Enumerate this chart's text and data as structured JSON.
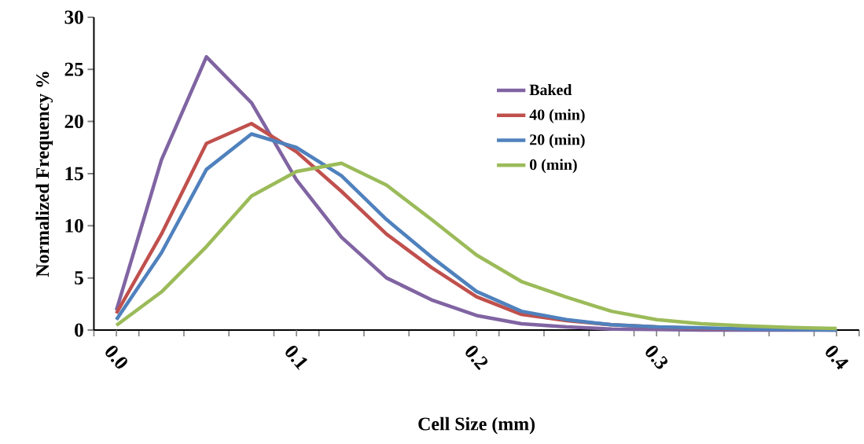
{
  "chart_data": {
    "type": "line",
    "xlabel": "Cell Size (mm)",
    "ylabel": "Normalized Frequency %",
    "x": [
      0,
      0.025,
      0.05,
      0.075,
      0.1,
      0.125,
      0.15,
      0.175,
      0.2,
      0.225,
      0.25,
      0.275,
      0.3,
      0.325,
      0.35,
      0.375,
      0.4
    ],
    "series": [
      {
        "name": "Baked",
        "color": "#8064a2",
        "values": [
          1.9,
          16.3,
          26.2,
          21.8,
          14.4,
          8.9,
          5.0,
          2.9,
          1.4,
          0.6,
          0.3,
          0.1,
          0.05,
          0,
          0,
          0,
          0
        ]
      },
      {
        "name": "40 (min)",
        "color": "#c0504d",
        "values": [
          1.6,
          9.2,
          17.9,
          19.8,
          17.1,
          13.3,
          9.2,
          6.0,
          3.2,
          1.5,
          0.9,
          0.5,
          0.3,
          0.15,
          0.1,
          null,
          null
        ]
      },
      {
        "name": "20 (min)",
        "color": "#4f81bd",
        "values": [
          1.0,
          7.4,
          15.4,
          18.8,
          17.5,
          14.8,
          10.6,
          7.0,
          3.7,
          1.8,
          1.0,
          0.5,
          0.3,
          0.2,
          0.1,
          0.05,
          0
        ]
      },
      {
        "name": "0 (min)",
        "color": "#9bbb59",
        "values": [
          0.45,
          3.65,
          8.0,
          12.85,
          15.2,
          16.0,
          13.9,
          10.6,
          7.2,
          4.65,
          3.15,
          1.8,
          1.0,
          0.6,
          0.4,
          0.25,
          0.15
        ]
      }
    ],
    "xlim": [
      -0.0125,
      0.4125
    ],
    "ylim": [
      0,
      30
    ],
    "xticks": [
      {
        "value": 0,
        "label": "0.0"
      },
      0.1,
      0.2,
      0.3,
      0.4,
      {
        "value": -0.0125,
        "label": null
      },
      {
        "value": 0.0125,
        "label": null
      },
      {
        "value": 0.0375,
        "label": null
      },
      {
        "value": 0.0625,
        "label": null
      },
      {
        "value": 0.0875,
        "label": null
      },
      {
        "value": 0.1125,
        "label": null
      },
      {
        "value": 0.1375,
        "label": null
      },
      {
        "value": 0.1625,
        "label": null
      },
      {
        "value": 0.1875,
        "label": null
      },
      {
        "value": 0.2125,
        "label": null
      },
      {
        "value": 0.2375,
        "label": null
      },
      {
        "value": 0.2625,
        "label": null
      },
      {
        "value": 0.2875,
        "label": null
      },
      {
        "value": 0.3125,
        "label": null
      },
      {
        "value": 0.3375,
        "label": null
      },
      {
        "value": 0.3625,
        "label": null
      },
      {
        "value": 0.3875,
        "label": null
      },
      {
        "value": 0.4125,
        "label": null
      }
    ],
    "yticks": [
      0,
      5,
      10,
      15,
      20,
      25,
      30
    ],
    "grid": false,
    "legend": "top right",
    "marker": "none",
    "line_style": "solid"
  }
}
